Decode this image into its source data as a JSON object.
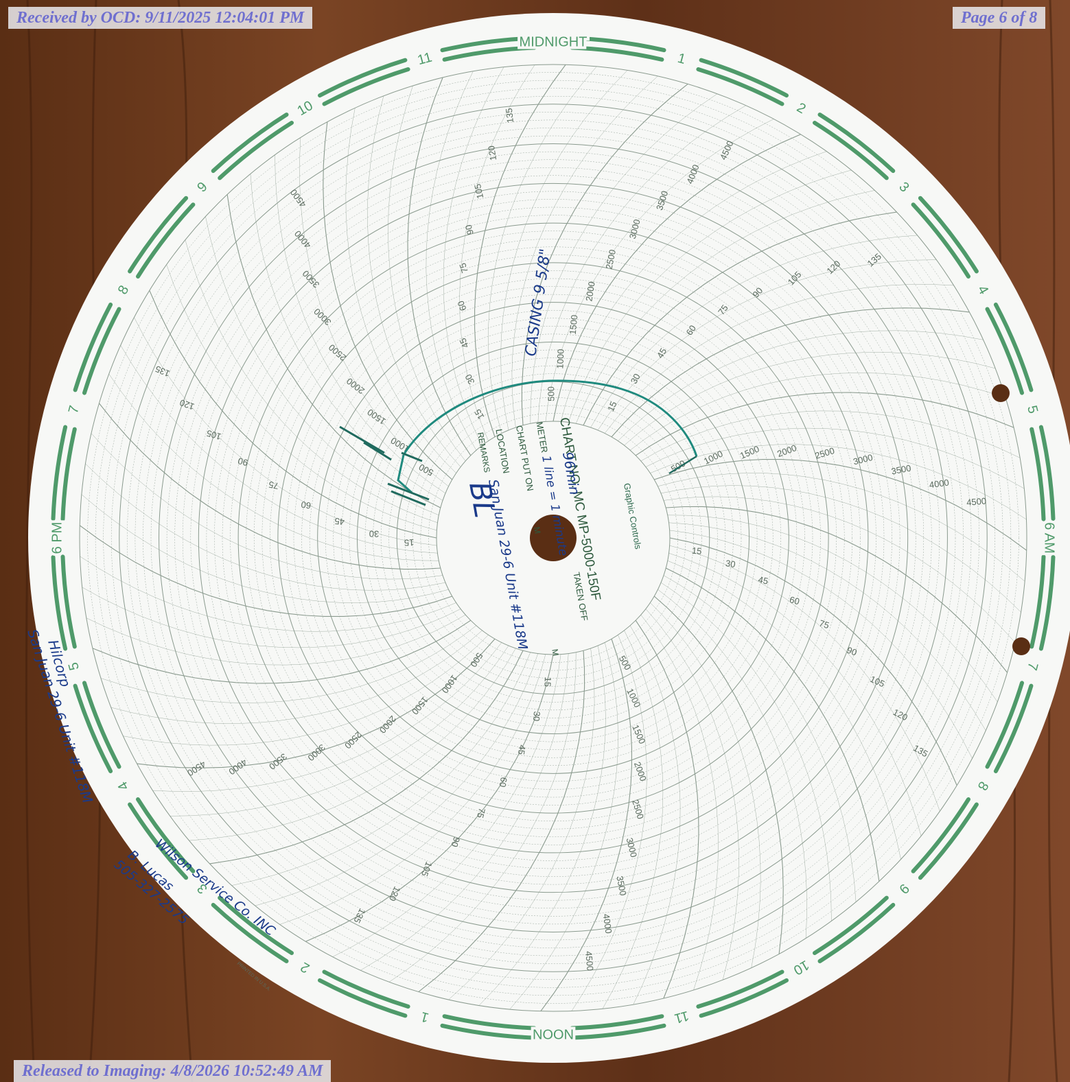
{
  "header": {
    "received_stamp": "Received by OCD: 9/11/2025 12:04:01 PM",
    "page_stamp": "Page 6 of 8"
  },
  "footer": {
    "released_stamp": "Released to Imaging: 4/8/2026 10:52:49 AM"
  },
  "chart": {
    "brand": "Graphic Controls",
    "chart_no_label": "CHART NO.",
    "chart_no": "MC MP-5000-150F",
    "field_meter": "METER",
    "field_chart_put_on": "CHART PUT ON",
    "field_location": "LOCATION",
    "field_remarks": "REMARKS",
    "field_taken_off": "TAKEN OFF",
    "field_m": "M",
    "printed": "PRINTED IN U.S.A.",
    "hour_labels": [
      "MIDNIGHT",
      "1",
      "2",
      "3",
      "4",
      "5",
      "6 AM",
      "7",
      "8",
      "9",
      "10",
      "11",
      "NOON",
      "1",
      "2",
      "3",
      "4",
      "5",
      "6 PM",
      "7",
      "8",
      "9",
      "10",
      "11"
    ],
    "pressure_labels": [
      "500",
      "1000",
      "1500",
      "2000",
      "2500",
      "3000",
      "3500",
      "4000",
      "4500"
    ],
    "temperature_labels": [
      "15",
      "30",
      "45",
      "60",
      "75",
      "90",
      "105",
      "120",
      "135"
    ]
  },
  "handwriting": {
    "meter_value": "96min",
    "meter_note": "1 line = 1 minute",
    "location_value": "San Juan 29-6 Unit #118M",
    "casing": "CASING 9 5/8\"",
    "signature": "BL",
    "margin_company": "Hilcorp",
    "margin_well": "San Juan 29-6 Unit #118M",
    "service_company": "Wilson Service Co. INC",
    "technician": "B. Lucas",
    "phone": "505-327-2575"
  },
  "colors": {
    "chart_green": "#4f9a6a",
    "grid": "#8a9a8e",
    "ink_blue": "#1a3a8a",
    "trace_teal": "#1f8a7e",
    "wood": "#6b3a1e",
    "stamp_text": "#6f6fcf"
  }
}
